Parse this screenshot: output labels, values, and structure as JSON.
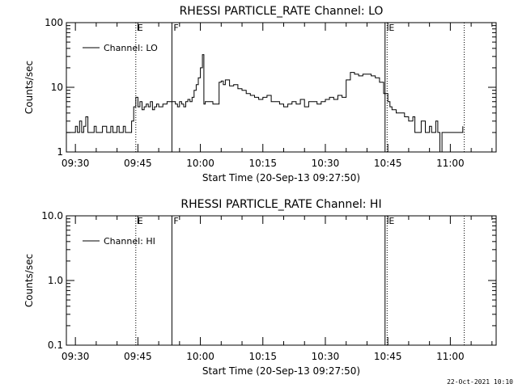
{
  "chart_data": [
    {
      "type": "line",
      "title": "RHESSI PARTICLE_RATE Channel: LO",
      "xlabel": "Start Time (20-Sep-13 09:27:50)",
      "ylabel": "Counts/sec",
      "yscale": "log",
      "ylim": [
        1,
        100
      ],
      "xlim": [
        "09:27:50",
        "11:11:00"
      ],
      "x_ticks": [
        "09:30",
        "09:45",
        "10:00",
        "10:15",
        "10:30",
        "10:45",
        "11:00"
      ],
      "y_ticks": [
        "1",
        "10",
        "100"
      ],
      "legend": "Channel: LO",
      "legend_position": "top-left",
      "grid": false,
      "markers": [
        {
          "time": "09:44:30",
          "label": "E",
          "style": "dotted"
        },
        {
          "time": "09:53:10",
          "label": "F",
          "style": "solid"
        },
        {
          "time": "10:44:20",
          "label": "",
          "style": "solid"
        },
        {
          "time": "10:44:50",
          "label": "E",
          "style": "dotted"
        },
        {
          "time": "11:03:20",
          "label": "",
          "style": "dotted"
        }
      ],
      "series": [
        {
          "x": [
            "09:27:50",
            "09:29:00",
            "09:30:00",
            "09:30:30",
            "09:31:00",
            "09:31:30",
            "09:32:00",
            "09:32:30",
            "09:33:00",
            "09:33:30",
            "09:34:00",
            "09:34:30",
            "09:35:00",
            "09:36:00",
            "09:36:30",
            "09:37:30",
            "09:38:00",
            "09:38:30",
            "09:39:00",
            "09:39:30",
            "09:40:00",
            "09:40:30",
            "09:41:00",
            "09:41:30",
            "09:42:00",
            "09:42:30",
            "09:43:00",
            "09:43:30",
            "09:44:00",
            "09:44:30",
            "09:45:00",
            "09:45:30",
            "09:46:00",
            "09:46:30",
            "09:47:00",
            "09:47:30",
            "09:48:00",
            "09:48:30",
            "09:49:00",
            "09:49:30",
            "09:50:00",
            "09:51:00",
            "09:52:00",
            "09:53:00",
            "09:54:00",
            "09:54:30",
            "09:55:00",
            "09:55:30",
            "09:56:00",
            "09:56:30",
            "09:57:00",
            "09:57:30",
            "09:58:00",
            "09:58:30",
            "09:59:00",
            "09:59:30",
            "10:00:00",
            "10:00:30",
            "10:00:50",
            "10:01:10",
            "10:01:30",
            "10:02:00",
            "10:03:00",
            "10:04:00",
            "10:04:30",
            "10:05:00",
            "10:05:30",
            "10:06:00",
            "10:07:00",
            "10:08:00",
            "10:09:00",
            "10:10:00",
            "10:11:00",
            "10:12:00",
            "10:13:00",
            "10:14:00",
            "10:15:00",
            "10:16:00",
            "10:17:00",
            "10:18:00",
            "10:19:00",
            "10:20:00",
            "10:21:00",
            "10:22:00",
            "10:23:00",
            "10:24:00",
            "10:25:00",
            "10:26:00",
            "10:27:00",
            "10:28:00",
            "10:29:00",
            "10:30:00",
            "10:31:00",
            "10:32:00",
            "10:33:00",
            "10:34:00",
            "10:35:00",
            "10:36:00",
            "10:37:00",
            "10:38:00",
            "10:39:00",
            "10:40:00",
            "10:41:00",
            "10:42:00",
            "10:43:00",
            "10:44:00",
            "10:45:00",
            "10:45:30",
            "10:46:00",
            "10:47:00",
            "10:48:00",
            "10:49:00",
            "10:50:00",
            "10:51:00",
            "10:51:30",
            "10:52:00",
            "10:53:00",
            "10:54:00",
            "10:55:00",
            "10:55:30",
            "10:56:00",
            "10:56:30",
            "10:57:00",
            "10:57:30",
            "10:58:00",
            "10:58:30",
            "10:59:00",
            "11:00:00",
            "11:01:00",
            "11:02:00",
            "11:03:00"
          ],
          "y": [
            2,
            2,
            2.5,
            2,
            3,
            2,
            2.5,
            3.5,
            2,
            2,
            2,
            2.5,
            2,
            2,
            2.5,
            2,
            2,
            2.5,
            2,
            2,
            2.5,
            2,
            2,
            2.5,
            2,
            2,
            2,
            3,
            5,
            7,
            5,
            6,
            4.5,
            5,
            5.5,
            5,
            6,
            4.5,
            5,
            5.5,
            5,
            5.5,
            6,
            6,
            5.5,
            5,
            6,
            5.5,
            5,
            6,
            6.5,
            6,
            7,
            9,
            11,
            14,
            20,
            32,
            5.5,
            6,
            6,
            6,
            5.5,
            5.5,
            12,
            12.5,
            11,
            13,
            10.5,
            11,
            9.5,
            9,
            8,
            7.5,
            7,
            6.5,
            7,
            7.5,
            6,
            6,
            5.5,
            5,
            5.5,
            6,
            5.5,
            6.5,
            5,
            6,
            6,
            5.5,
            6,
            6.5,
            7,
            6.5,
            7.5,
            7,
            13,
            17,
            16,
            15,
            16,
            16,
            15,
            14,
            12,
            8,
            6,
            5,
            4.5,
            4,
            4,
            3.5,
            3,
            3.5,
            2,
            2,
            3,
            2,
            2.5,
            2,
            2,
            3,
            2,
            1,
            2,
            2,
            2,
            2,
            2,
            2,
            2.5
          ]
        }
      ]
    },
    {
      "type": "line",
      "title": "RHESSI PARTICLE_RATE Channel: HI",
      "xlabel": "Start Time (20-Sep-13 09:27:50)",
      "ylabel": "Counts/sec",
      "yscale": "log",
      "ylim": [
        0.1,
        10
      ],
      "xlim": [
        "09:27:50",
        "11:11:00"
      ],
      "x_ticks": [
        "09:30",
        "09:45",
        "10:00",
        "10:15",
        "10:30",
        "10:45",
        "11:00"
      ],
      "y_ticks": [
        "0.1",
        "1.0",
        "10.0"
      ],
      "legend": "Channel: HI",
      "legend_position": "top-left",
      "grid": false,
      "markers": [
        {
          "time": "09:44:30",
          "label": "E",
          "style": "dotted"
        },
        {
          "time": "09:53:10",
          "label": "F",
          "style": "solid"
        },
        {
          "time": "10:44:20",
          "label": "",
          "style": "solid"
        },
        {
          "time": "10:44:50",
          "label": "E",
          "style": "dotted"
        },
        {
          "time": "11:03:20",
          "label": "",
          "style": "dotted"
        }
      ],
      "series": [
        {
          "x": [],
          "y": []
        }
      ]
    }
  ],
  "footer": {
    "timestamp": "22-Oct-2021 10:10"
  }
}
